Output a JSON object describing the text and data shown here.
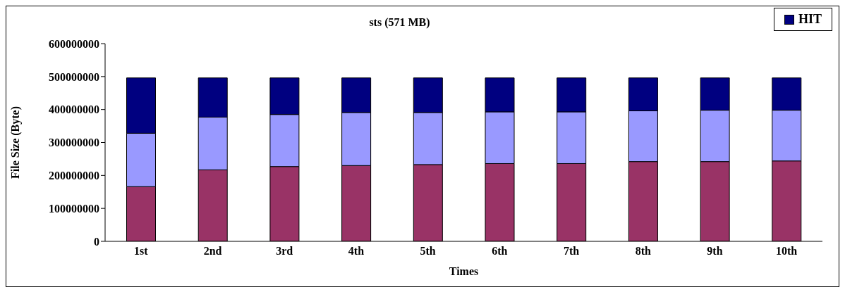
{
  "chart_data": {
    "type": "bar",
    "title": "sts (571 MB)",
    "xlabel": "Times",
    "ylabel": "File Size (Byte)",
    "stacked": true,
    "categories": [
      "1st",
      "2nd",
      "3rd",
      "4th",
      "5th",
      "6th",
      "7th",
      "8th",
      "9th",
      "10th"
    ],
    "series": [
      {
        "color": "#993366",
        "values": [
          166000000,
          217000000,
          227000000,
          230000000,
          233000000,
          236000000,
          236000000,
          242000000,
          242000000,
          244000000
        ]
      },
      {
        "color": "#9999ff",
        "values": [
          162000000,
          160000000,
          158000000,
          161000000,
          158000000,
          157000000,
          157000000,
          154000000,
          156000000,
          154000000
        ]
      },
      {
        "name": "HIT",
        "color": "#000080",
        "values": [
          168000000,
          119000000,
          111000000,
          105000000,
          105000000,
          103000000,
          103000000,
          100000000,
          98000000,
          98000000
        ]
      }
    ],
    "ylim": [
      0,
      600000000
    ],
    "yticks": [
      0,
      100000000,
      200000000,
      300000000,
      400000000,
      500000000,
      600000000
    ],
    "grid": false,
    "legend": "top right"
  }
}
